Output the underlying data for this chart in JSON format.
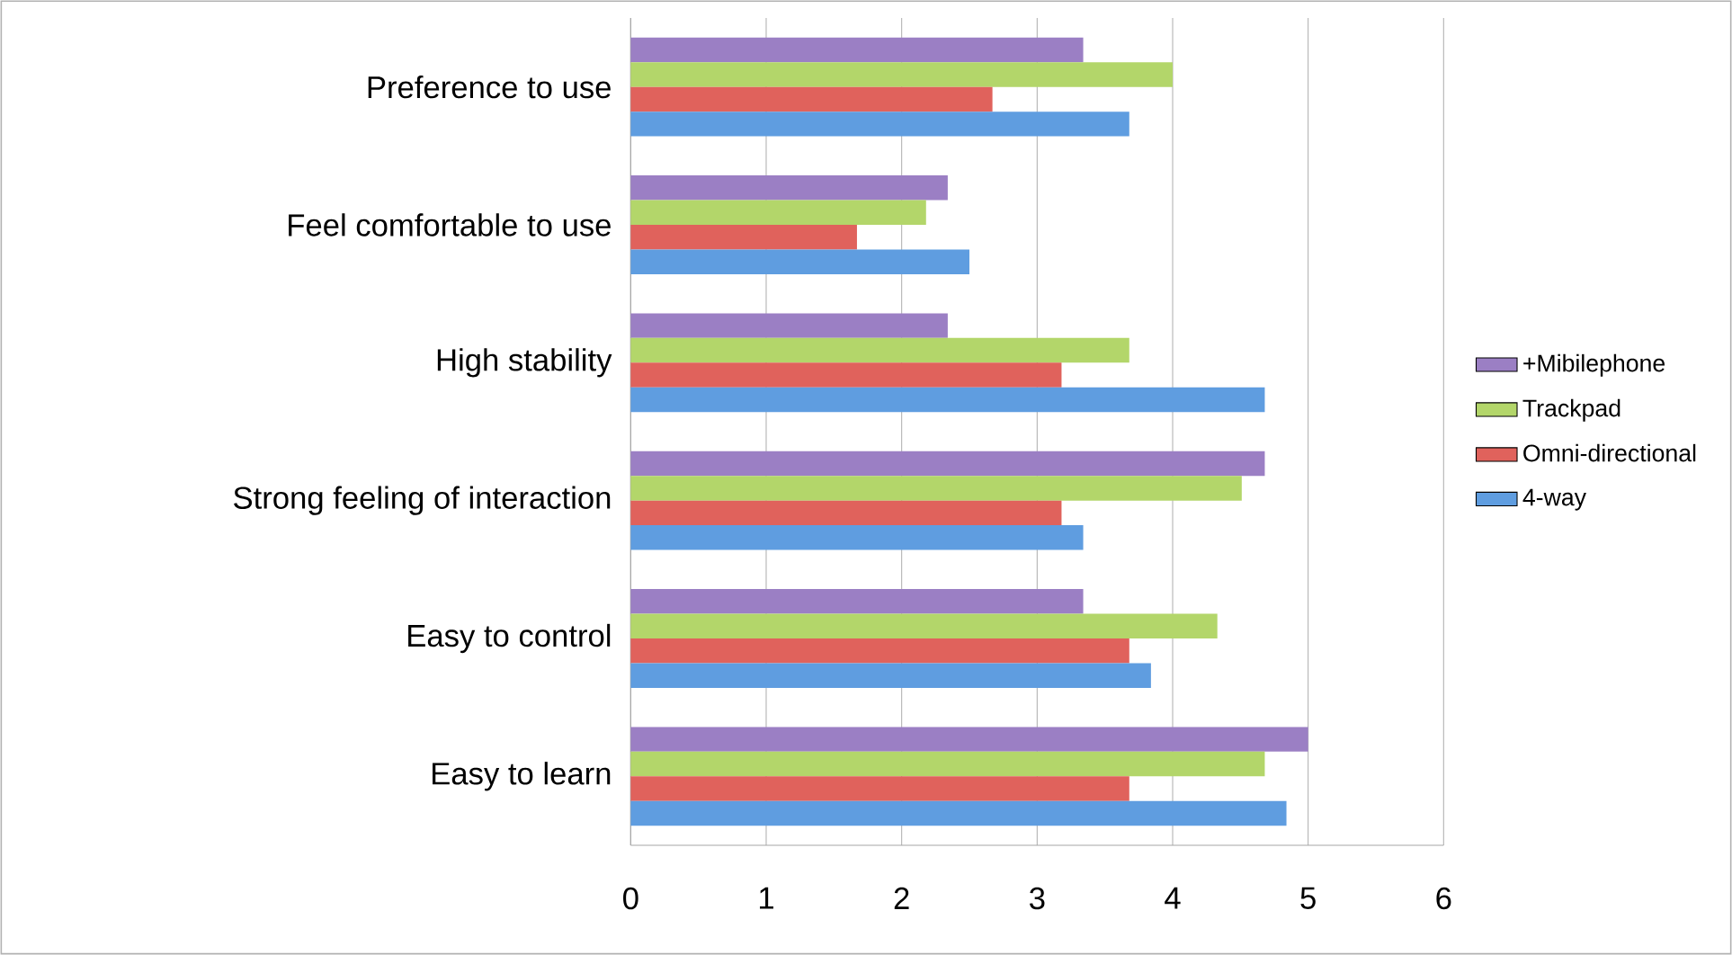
{
  "chart_data": {
    "type": "bar",
    "orientation": "horizontal",
    "categories": [
      "Preference to use",
      "Feel comfortable to use",
      "High stability",
      "Strong feeling of interaction",
      "Easy to control",
      "Easy to learn"
    ],
    "series": [
      {
        "name": "+Mibilephone",
        "color": "#9b7fc4",
        "values": [
          3.34,
          2.34,
          2.34,
          4.68,
          3.34,
          5.0
        ]
      },
      {
        "name": "Trackpad",
        "color": "#b3d66a",
        "values": [
          4.0,
          2.18,
          3.68,
          4.51,
          4.33,
          4.68
        ]
      },
      {
        "name": "Omni-directional",
        "color": "#e0625c",
        "values": [
          2.67,
          1.67,
          3.18,
          3.18,
          3.68,
          3.68
        ]
      },
      {
        "name": "4-way",
        "color": "#5f9de0",
        "values": [
          3.68,
          2.5,
          4.68,
          3.34,
          3.84,
          4.84
        ]
      }
    ],
    "xlim": [
      0,
      6
    ],
    "xticks": [
      0,
      1,
      2,
      3,
      4,
      5,
      6
    ],
    "grid": "x",
    "legend": "right"
  }
}
